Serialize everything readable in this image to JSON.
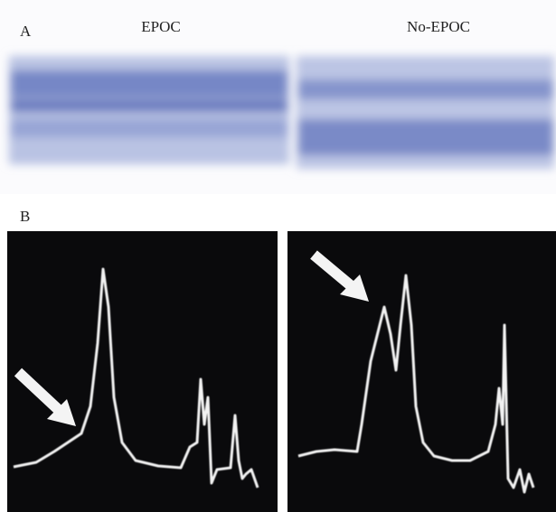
{
  "panel_a": {
    "label": "A",
    "lanes": [
      "EPOC",
      "No-EPOC"
    ]
  },
  "panel_b": {
    "label": "B"
  }
}
